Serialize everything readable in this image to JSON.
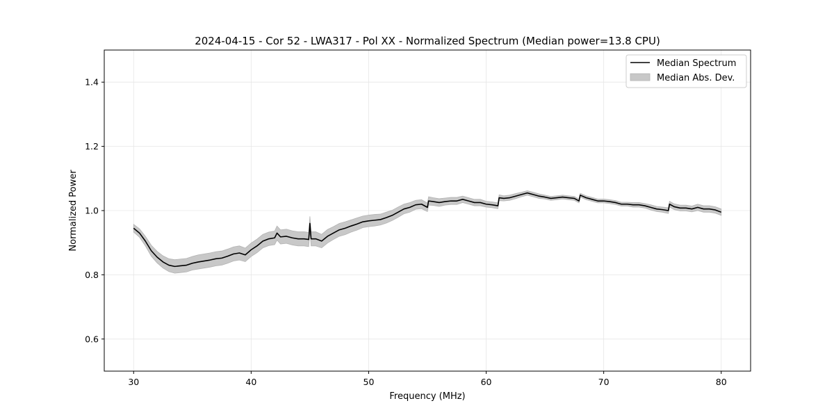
{
  "chart_data": {
    "type": "line",
    "title": "2024-04-15 - Cor 52 - LWA317 - Pol XX - Normalized Spectrum (Median power=13.8 CPU)",
    "xlabel": "Frequency (MHz)",
    "ylabel": "Normalized Power",
    "xlim": [
      27.5,
      82.5
    ],
    "ylim": [
      0.5,
      1.5
    ],
    "xticks": [
      30,
      40,
      50,
      60,
      70,
      80
    ],
    "yticks": [
      0.6,
      0.8,
      1.0,
      1.2,
      1.4
    ],
    "xtick_labels": [
      "30",
      "40",
      "50",
      "60",
      "70",
      "80"
    ],
    "ytick_labels": [
      "0.6",
      "0.8",
      "1.0",
      "1.2",
      "1.4"
    ],
    "grid": true,
    "legend_position": "top-right",
    "colors": {
      "line": "#000000",
      "band_fill": "#c8c8c8",
      "band_edge": "#b3b3b3",
      "grid": "#e6e6e6"
    },
    "series": [
      {
        "name": "Median Spectrum",
        "kind": "line",
        "x": [
          30.0,
          30.5,
          31.0,
          31.5,
          32.0,
          32.5,
          33.0,
          33.5,
          34.0,
          34.5,
          35.0,
          35.5,
          36.0,
          36.5,
          37.0,
          37.5,
          38.0,
          38.5,
          39.0,
          39.5,
          40.0,
          40.5,
          41.0,
          41.5,
          42.0,
          42.2,
          42.5,
          43.0,
          43.5,
          44.0,
          44.5,
          44.9,
          45.0,
          45.1,
          45.5,
          46.0,
          46.5,
          47.0,
          47.5,
          48.0,
          48.5,
          49.0,
          49.5,
          50.0,
          50.5,
          51.0,
          51.5,
          52.0,
          52.5,
          53.0,
          53.5,
          54.0,
          54.5,
          55.0,
          55.1,
          55.5,
          56.0,
          56.5,
          57.0,
          57.5,
          58.0,
          58.5,
          59.0,
          59.5,
          60.0,
          60.5,
          61.0,
          61.1,
          61.5,
          62.0,
          62.5,
          63.0,
          63.5,
          64.0,
          64.5,
          65.0,
          65.5,
          66.0,
          66.5,
          67.0,
          67.5,
          67.9,
          68.0,
          68.5,
          69.0,
          69.5,
          70.0,
          70.5,
          71.0,
          71.5,
          72.0,
          72.5,
          73.0,
          73.5,
          74.0,
          74.5,
          75.0,
          75.5,
          75.6,
          76.0,
          76.5,
          77.0,
          77.5,
          78.0,
          78.5,
          79.0,
          79.5,
          80.0
        ],
        "y": [
          0.945,
          0.93,
          0.905,
          0.875,
          0.855,
          0.84,
          0.83,
          0.826,
          0.828,
          0.83,
          0.836,
          0.84,
          0.843,
          0.846,
          0.85,
          0.852,
          0.858,
          0.865,
          0.868,
          0.862,
          0.878,
          0.89,
          0.905,
          0.912,
          0.915,
          0.93,
          0.918,
          0.92,
          0.915,
          0.912,
          0.912,
          0.91,
          0.96,
          0.912,
          0.912,
          0.905,
          0.92,
          0.93,
          0.94,
          0.945,
          0.952,
          0.958,
          0.965,
          0.968,
          0.97,
          0.972,
          0.978,
          0.985,
          0.995,
          1.005,
          1.01,
          1.018,
          1.02,
          1.01,
          1.03,
          1.028,
          1.025,
          1.028,
          1.03,
          1.03,
          1.035,
          1.03,
          1.025,
          1.025,
          1.02,
          1.018,
          1.015,
          1.04,
          1.038,
          1.04,
          1.045,
          1.05,
          1.055,
          1.05,
          1.045,
          1.042,
          1.038,
          1.04,
          1.042,
          1.04,
          1.038,
          1.03,
          1.048,
          1.04,
          1.035,
          1.03,
          1.03,
          1.028,
          1.025,
          1.02,
          1.02,
          1.018,
          1.018,
          1.015,
          1.01,
          1.005,
          1.003,
          1.0,
          1.02,
          1.012,
          1.008,
          1.008,
          1.005,
          1.01,
          1.005,
          1.005,
          1.002,
          0.995
        ]
      },
      {
        "name": "Median Abs. Dev.",
        "kind": "band",
        "half_width": [
          0.012,
          0.013,
          0.015,
          0.017,
          0.018,
          0.019,
          0.02,
          0.021,
          0.021,
          0.021,
          0.021,
          0.022,
          0.022,
          0.022,
          0.022,
          0.022,
          0.022,
          0.022,
          0.022,
          0.021,
          0.021,
          0.021,
          0.021,
          0.021,
          0.021,
          0.022,
          0.022,
          0.022,
          0.022,
          0.022,
          0.022,
          0.022,
          0.022,
          0.022,
          0.022,
          0.021,
          0.021,
          0.02,
          0.02,
          0.02,
          0.019,
          0.019,
          0.018,
          0.018,
          0.018,
          0.017,
          0.017,
          0.016,
          0.016,
          0.015,
          0.015,
          0.014,
          0.014,
          0.013,
          0.013,
          0.012,
          0.012,
          0.011,
          0.011,
          0.011,
          0.01,
          0.01,
          0.01,
          0.01,
          0.009,
          0.009,
          0.009,
          0.009,
          0.008,
          0.008,
          0.008,
          0.007,
          0.007,
          0.007,
          0.007,
          0.006,
          0.006,
          0.006,
          0.006,
          0.006,
          0.006,
          0.006,
          0.006,
          0.006,
          0.006,
          0.006,
          0.006,
          0.006,
          0.006,
          0.006,
          0.006,
          0.007,
          0.007,
          0.007,
          0.008,
          0.008,
          0.008,
          0.009,
          0.009,
          0.009,
          0.009,
          0.009,
          0.009,
          0.01,
          0.01,
          0.01,
          0.01,
          0.01
        ]
      }
    ]
  }
}
